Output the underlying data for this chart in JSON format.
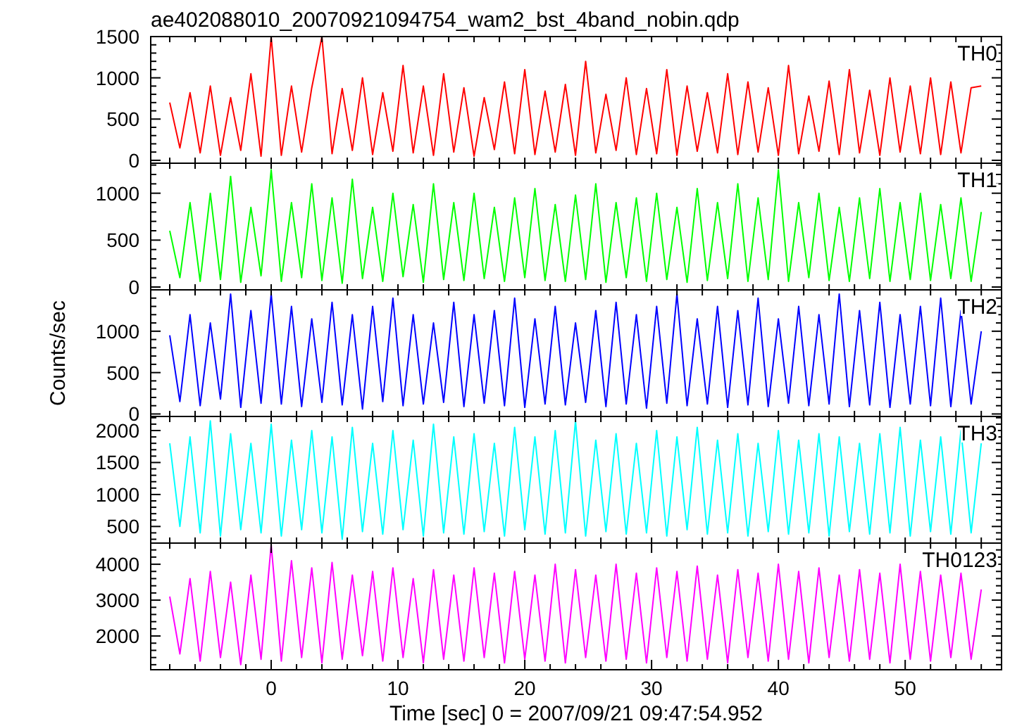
{
  "chart_data": [
    {
      "type": "line",
      "title": "ae402088010_20070921094754_wam2_bst_4band_nobin.qdp",
      "tick_labels": "y",
      "xlim": [
        -9.5,
        57.6
      ],
      "ylim": [
        -35,
        1500
      ],
      "xticks": [
        {
          "value": -8,
          "label": null
        },
        {
          "value": -6,
          "label": null
        },
        {
          "value": -4,
          "label": null
        },
        {
          "value": -2,
          "label": null
        },
        {
          "value": 0,
          "label": null
        },
        {
          "value": 2,
          "label": null
        },
        {
          "value": 4,
          "label": null
        },
        {
          "value": 6,
          "label": null
        },
        {
          "value": 8,
          "label": null
        },
        {
          "value": 10,
          "label": null
        },
        {
          "value": 12,
          "label": null
        },
        {
          "value": 14,
          "label": null
        },
        {
          "value": 16,
          "label": null
        },
        {
          "value": 18,
          "label": null
        },
        {
          "value": 20,
          "label": null
        },
        {
          "value": 22,
          "label": null
        },
        {
          "value": 24,
          "label": null
        },
        {
          "value": 26,
          "label": null
        },
        {
          "value": 28,
          "label": null
        },
        {
          "value": 30,
          "label": null
        },
        {
          "value": 32,
          "label": null
        },
        {
          "value": 34,
          "label": null
        },
        {
          "value": 36,
          "label": null
        },
        {
          "value": 38,
          "label": null
        },
        {
          "value": 40,
          "label": null
        },
        {
          "value": 42,
          "label": null
        },
        {
          "value": 44,
          "label": null
        },
        {
          "value": 46,
          "label": null
        },
        {
          "value": 48,
          "label": null
        },
        {
          "value": 50,
          "label": null
        },
        {
          "value": 52,
          "label": null
        },
        {
          "value": 54,
          "label": null
        },
        {
          "value": 56,
          "label": null
        }
      ],
      "yticks": [
        0,
        {
          "value": 100,
          "label": null
        },
        {
          "value": 200,
          "label": null
        },
        {
          "value": 300,
          "label": null
        },
        {
          "value": 400,
          "label": null
        },
        500,
        {
          "value": 600,
          "label": null
        },
        {
          "value": 700,
          "label": null
        },
        {
          "value": 800,
          "label": null
        },
        {
          "value": 900,
          "label": null
        },
        1000,
        {
          "value": 1100,
          "label": null
        },
        {
          "value": 1200,
          "label": null
        },
        {
          "value": 1300,
          "label": null
        },
        {
          "value": 1400,
          "label": null
        },
        1500
      ],
      "x": [
        -8,
        -7.2,
        -6.4,
        -5.6,
        -4.8,
        -4,
        -3.2,
        -2.4,
        -1.6,
        -0.8,
        0,
        0.8,
        1.6,
        2.4,
        3.2,
        4,
        4.8,
        5.6,
        6.4,
        7.2,
        8,
        8.8,
        9.6,
        10.4,
        11.2,
        12,
        12.8,
        13.6,
        14.4,
        15.2,
        16,
        16.8,
        17.6,
        18.4,
        19.2,
        20,
        20.8,
        21.6,
        22.4,
        23.2,
        24,
        24.8,
        25.6,
        26.4,
        27.2,
        28,
        28.8,
        29.6,
        30.4,
        31.2,
        32,
        32.8,
        33.6,
        34.4,
        35.2,
        36,
        36.8,
        37.6,
        38.4,
        39.2,
        40,
        40.8,
        41.6,
        42.4,
        43.2,
        44,
        44.8,
        45.6,
        46.4,
        47.2,
        48,
        48.8,
        49.6,
        50.4,
        51.2,
        52,
        52.8,
        53.6,
        54.4,
        55.2,
        56
      ],
      "series": [
        {
          "name": "TH0",
          "color": "#ff0000",
          "values": [
            700,
            150,
            820,
            90,
            900,
            60,
            760,
            120,
            1050,
            50,
            1500,
            60,
            900,
            100,
            880,
            1500,
            80,
            870,
            120,
            1000,
            70,
            820,
            110,
            1150,
            90,
            900,
            60,
            1050,
            100,
            880,
            50,
            760,
            130,
            950,
            80,
            1100,
            70,
            840,
            100,
            920,
            60,
            1200,
            90,
            800,
            120,
            1000,
            70,
            870,
            80,
            1100,
            60,
            900,
            110,
            820,
            90,
            1050,
            70,
            950,
            100,
            880,
            60,
            1150,
            80,
            780,
            110,
            960,
            70,
            1100,
            90,
            850,
            60,
            1000,
            100,
            900,
            80,
            1000,
            70,
            950,
            90,
            880,
            900
          ]
        }
      ]
    },
    {
      "type": "line",
      "tick_labels": "y",
      "xlim": [
        -9.5,
        57.6
      ],
      "ylim": [
        -30,
        1320
      ],
      "xticks": [
        {
          "value": -8,
          "label": null
        },
        {
          "value": -6,
          "label": null
        },
        {
          "value": -4,
          "label": null
        },
        {
          "value": -2,
          "label": null
        },
        {
          "value": 0,
          "label": null
        },
        {
          "value": 2,
          "label": null
        },
        {
          "value": 4,
          "label": null
        },
        {
          "value": 6,
          "label": null
        },
        {
          "value": 8,
          "label": null
        },
        {
          "value": 10,
          "label": null
        },
        {
          "value": 12,
          "label": null
        },
        {
          "value": 14,
          "label": null
        },
        {
          "value": 16,
          "label": null
        },
        {
          "value": 18,
          "label": null
        },
        {
          "value": 20,
          "label": null
        },
        {
          "value": 22,
          "label": null
        },
        {
          "value": 24,
          "label": null
        },
        {
          "value": 26,
          "label": null
        },
        {
          "value": 28,
          "label": null
        },
        {
          "value": 30,
          "label": null
        },
        {
          "value": 32,
          "label": null
        },
        {
          "value": 34,
          "label": null
        },
        {
          "value": 36,
          "label": null
        },
        {
          "value": 38,
          "label": null
        },
        {
          "value": 40,
          "label": null
        },
        {
          "value": 42,
          "label": null
        },
        {
          "value": 44,
          "label": null
        },
        {
          "value": 46,
          "label": null
        },
        {
          "value": 48,
          "label": null
        },
        {
          "value": 50,
          "label": null
        },
        {
          "value": 52,
          "label": null
        },
        {
          "value": 54,
          "label": null
        },
        {
          "value": 56,
          "label": null
        }
      ],
      "yticks": [
        0,
        {
          "value": 100,
          "label": null
        },
        {
          "value": 200,
          "label": null
        },
        {
          "value": 300,
          "label": null
        },
        {
          "value": 400,
          "label": null
        },
        500,
        {
          "value": 600,
          "label": null
        },
        {
          "value": 700,
          "label": null
        },
        {
          "value": 800,
          "label": null
        },
        {
          "value": 900,
          "label": null
        },
        1000,
        {
          "value": 1100,
          "label": null
        },
        {
          "value": 1200,
          "label": null
        },
        {
          "value": 1300,
          "label": null
        }
      ],
      "x": [
        -8,
        -7.2,
        -6.4,
        -5.6,
        -4.8,
        -4,
        -3.2,
        -2.4,
        -1.6,
        -0.8,
        0,
        0.8,
        1.6,
        2.4,
        3.2,
        4,
        4.8,
        5.6,
        6.4,
        7.2,
        8,
        8.8,
        9.6,
        10.4,
        11.2,
        12,
        12.8,
        13.6,
        14.4,
        15.2,
        16,
        16.8,
        17.6,
        18.4,
        19.2,
        20,
        20.8,
        21.6,
        22.4,
        23.2,
        24,
        24.8,
        25.6,
        26.4,
        27.2,
        28,
        28.8,
        29.6,
        30.4,
        31.2,
        32,
        32.8,
        33.6,
        34.4,
        35.2,
        36,
        36.8,
        37.6,
        38.4,
        39.2,
        40,
        40.8,
        41.6,
        42.4,
        43.2,
        44,
        44.8,
        45.6,
        46.4,
        47.2,
        48,
        48.8,
        49.6,
        50.4,
        51.2,
        52,
        52.8,
        53.6,
        54.4,
        55.2,
        56
      ],
      "series": [
        {
          "name": "TH1",
          "color": "#00ff00",
          "values": [
            600,
            100,
            900,
            60,
            1000,
            80,
            1180,
            50,
            850,
            120,
            1250,
            60,
            900,
            100,
            1100,
            70,
            950,
            40,
            1150,
            90,
            850,
            60,
            1000,
            110,
            880,
            50,
            1100,
            80,
            900,
            70,
            1000,
            90,
            850,
            60,
            950,
            100,
            1050,
            70,
            880,
            60,
            980,
            80,
            1100,
            50,
            900,
            100,
            950,
            60,
            1000,
            80,
            850,
            50,
            1050,
            70,
            900,
            90,
            1100,
            60,
            950,
            80,
            1250,
            60,
            900,
            100,
            1000,
            70,
            850,
            60,
            950,
            90,
            1050,
            60,
            900,
            80,
            1000,
            70,
            880,
            90,
            950,
            60,
            800
          ]
        }
      ]
    },
    {
      "type": "line",
      "ylabel": "Counts/sec",
      "tick_labels": "y",
      "xlim": [
        -9.5,
        57.6
      ],
      "ylim": [
        -30,
        1500
      ],
      "xticks": [
        {
          "value": -8,
          "label": null
        },
        {
          "value": -6,
          "label": null
        },
        {
          "value": -4,
          "label": null
        },
        {
          "value": -2,
          "label": null
        },
        {
          "value": 0,
          "label": null
        },
        {
          "value": 2,
          "label": null
        },
        {
          "value": 4,
          "label": null
        },
        {
          "value": 6,
          "label": null
        },
        {
          "value": 8,
          "label": null
        },
        {
          "value": 10,
          "label": null
        },
        {
          "value": 12,
          "label": null
        },
        {
          "value": 14,
          "label": null
        },
        {
          "value": 16,
          "label": null
        },
        {
          "value": 18,
          "label": null
        },
        {
          "value": 20,
          "label": null
        },
        {
          "value": 22,
          "label": null
        },
        {
          "value": 24,
          "label": null
        },
        {
          "value": 26,
          "label": null
        },
        {
          "value": 28,
          "label": null
        },
        {
          "value": 30,
          "label": null
        },
        {
          "value": 32,
          "label": null
        },
        {
          "value": 34,
          "label": null
        },
        {
          "value": 36,
          "label": null
        },
        {
          "value": 38,
          "label": null
        },
        {
          "value": 40,
          "label": null
        },
        {
          "value": 42,
          "label": null
        },
        {
          "value": 44,
          "label": null
        },
        {
          "value": 46,
          "label": null
        },
        {
          "value": 48,
          "label": null
        },
        {
          "value": 50,
          "label": null
        },
        {
          "value": 52,
          "label": null
        },
        {
          "value": 54,
          "label": null
        },
        {
          "value": 56,
          "label": null
        }
      ],
      "yticks": [
        0,
        {
          "value": 100,
          "label": null
        },
        {
          "value": 200,
          "label": null
        },
        {
          "value": 300,
          "label": null
        },
        {
          "value": 400,
          "label": null
        },
        500,
        {
          "value": 600,
          "label": null
        },
        {
          "value": 700,
          "label": null
        },
        {
          "value": 800,
          "label": null
        },
        {
          "value": 900,
          "label": null
        },
        1000,
        {
          "value": 1100,
          "label": null
        },
        {
          "value": 1200,
          "label": null
        },
        {
          "value": 1300,
          "label": null
        },
        {
          "value": 1400,
          "label": null
        }
      ],
      "x": [
        -8,
        -7.2,
        -6.4,
        -5.6,
        -4.8,
        -4,
        -3.2,
        -2.4,
        -1.6,
        -0.8,
        0,
        0.8,
        1.6,
        2.4,
        3.2,
        4,
        4.8,
        5.6,
        6.4,
        7.2,
        8,
        8.8,
        9.6,
        10.4,
        11.2,
        12,
        12.8,
        13.6,
        14.4,
        15.2,
        16,
        16.8,
        17.6,
        18.4,
        19.2,
        20,
        20.8,
        21.6,
        22.4,
        23.2,
        24,
        24.8,
        25.6,
        26.4,
        27.2,
        28,
        28.8,
        29.6,
        30.4,
        31.2,
        32,
        32.8,
        33.6,
        34.4,
        35.2,
        36,
        36.8,
        37.6,
        38.4,
        39.2,
        40,
        40.8,
        41.6,
        42.4,
        43.2,
        44,
        44.8,
        45.6,
        46.4,
        47.2,
        48,
        48.8,
        49.6,
        50.4,
        51.2,
        52,
        52.8,
        53.6,
        54.4,
        55.2,
        56
      ],
      "series": [
        {
          "name": "TH2",
          "color": "#0000ff",
          "values": [
            950,
            150,
            1200,
            100,
            1100,
            180,
            1450,
            80,
            1250,
            130,
            1450,
            120,
            1300,
            90,
            1150,
            140,
            1350,
            110,
            1200,
            60,
            1300,
            150,
            1400,
            100,
            1200,
            120,
            1100,
            140,
            1350,
            90,
            1200,
            130,
            1250,
            100,
            1400,
            80,
            1150,
            120,
            1300,
            110,
            1100,
            140,
            1250,
            90,
            1350,
            120,
            1200,
            70,
            1300,
            130,
            1450,
            100,
            1150,
            120,
            1300,
            80,
            1250,
            110,
            1400,
            90,
            1150,
            130,
            1300,
            100,
            1200,
            120,
            1450,
            90,
            1250,
            110,
            1350,
            80,
            1200,
            120,
            1300,
            100,
            1400,
            90,
            1250,
            120,
            1000
          ]
        }
      ]
    },
    {
      "type": "line",
      "tick_labels": "y",
      "xlim": [
        -9.5,
        57.6
      ],
      "ylim": [
        240,
        2220
      ],
      "xticks": [
        {
          "value": -8,
          "label": null
        },
        {
          "value": -6,
          "label": null
        },
        {
          "value": -4,
          "label": null
        },
        {
          "value": -2,
          "label": null
        },
        {
          "value": 0,
          "label": null
        },
        {
          "value": 2,
          "label": null
        },
        {
          "value": 4,
          "label": null
        },
        {
          "value": 6,
          "label": null
        },
        {
          "value": 8,
          "label": null
        },
        {
          "value": 10,
          "label": null
        },
        {
          "value": 12,
          "label": null
        },
        {
          "value": 14,
          "label": null
        },
        {
          "value": 16,
          "label": null
        },
        {
          "value": 18,
          "label": null
        },
        {
          "value": 20,
          "label": null
        },
        {
          "value": 22,
          "label": null
        },
        {
          "value": 24,
          "label": null
        },
        {
          "value": 26,
          "label": null
        },
        {
          "value": 28,
          "label": null
        },
        {
          "value": 30,
          "label": null
        },
        {
          "value": 32,
          "label": null
        },
        {
          "value": 34,
          "label": null
        },
        {
          "value": 36,
          "label": null
        },
        {
          "value": 38,
          "label": null
        },
        {
          "value": 40,
          "label": null
        },
        {
          "value": 42,
          "label": null
        },
        {
          "value": 44,
          "label": null
        },
        {
          "value": 46,
          "label": null
        },
        {
          "value": 48,
          "label": null
        },
        {
          "value": 50,
          "label": null
        },
        {
          "value": 52,
          "label": null
        },
        {
          "value": 54,
          "label": null
        },
        {
          "value": 56,
          "label": null
        }
      ],
      "yticks": [
        {
          "value": 300,
          "label": null
        },
        {
          "value": 400,
          "label": null
        },
        500,
        {
          "value": 600,
          "label": null
        },
        {
          "value": 700,
          "label": null
        },
        {
          "value": 800,
          "label": null
        },
        {
          "value": 900,
          "label": null
        },
        1000,
        {
          "value": 1100,
          "label": null
        },
        {
          "value": 1200,
          "label": null
        },
        {
          "value": 1300,
          "label": null
        },
        {
          "value": 1400,
          "label": null
        },
        1500,
        {
          "value": 1600,
          "label": null
        },
        {
          "value": 1700,
          "label": null
        },
        {
          "value": 1800,
          "label": null
        },
        {
          "value": 1900,
          "label": null
        },
        2000,
        {
          "value": 2100,
          "label": null
        },
        {
          "value": 2200,
          "label": null
        }
      ],
      "x": [
        -8,
        -7.2,
        -6.4,
        -5.6,
        -4.8,
        -4,
        -3.2,
        -2.4,
        -1.6,
        -0.8,
        0,
        0.8,
        1.6,
        2.4,
        3.2,
        4,
        4.8,
        5.6,
        6.4,
        7.2,
        8,
        8.8,
        9.6,
        10.4,
        11.2,
        12,
        12.8,
        13.6,
        14.4,
        15.2,
        16,
        16.8,
        17.6,
        18.4,
        19.2,
        20,
        20.8,
        21.6,
        22.4,
        23.2,
        24,
        24.8,
        25.6,
        26.4,
        27.2,
        28,
        28.8,
        29.6,
        30.4,
        31.2,
        32,
        32.8,
        33.6,
        34.4,
        35.2,
        36,
        36.8,
        37.6,
        38.4,
        39.2,
        40,
        40.8,
        41.6,
        42.4,
        43.2,
        44,
        44.8,
        45.6,
        46.4,
        47.2,
        48,
        48.8,
        49.6,
        50.4,
        51.2,
        52,
        52.8,
        53.6,
        54.4,
        55.2,
        56
      ],
      "series": [
        {
          "name": "TH3",
          "color": "#00ffff",
          "values": [
            1800,
            500,
            1900,
            400,
            2150,
            350,
            1950,
            450,
            1800,
            400,
            2100,
            350,
            1850,
            450,
            2000,
            400,
            1900,
            300,
            2050,
            420,
            1800,
            380,
            2000,
            450,
            1850,
            350,
            2100,
            400,
            1900,
            380,
            1950,
            420,
            1800,
            350,
            2050,
            450,
            1900,
            380,
            2000,
            400,
            2150,
            350,
            1850,
            420,
            1950,
            380,
            1800,
            400,
            2000,
            350,
            1900,
            450,
            2050,
            380,
            1850,
            400,
            1950,
            350,
            1800,
            420,
            2000,
            380,
            1850,
            400,
            1950,
            350,
            1900,
            420,
            1800,
            380,
            1950,
            400,
            2050,
            350,
            1850,
            420,
            1900,
            380,
            2000,
            400,
            1800
          ]
        }
      ]
    },
    {
      "type": "line",
      "xlabel": "Time [sec] 0 = 2007/09/21 09:47:54.952",
      "xlim": [
        -9.5,
        57.6
      ],
      "ylim": [
        1060,
        4590
      ],
      "xticks": [
        {
          "value": -8,
          "label": null
        },
        {
          "value": -6,
          "label": null
        },
        {
          "value": -4,
          "label": null
        },
        {
          "value": -2,
          "label": null
        },
        0,
        {
          "value": 2,
          "label": null
        },
        {
          "value": 4,
          "label": null
        },
        {
          "value": 6,
          "label": null
        },
        {
          "value": 8,
          "label": null
        },
        10,
        {
          "value": 12,
          "label": null
        },
        {
          "value": 14,
          "label": null
        },
        {
          "value": 16,
          "label": null
        },
        {
          "value": 18,
          "label": null
        },
        20,
        {
          "value": 22,
          "label": null
        },
        {
          "value": 24,
          "label": null
        },
        {
          "value": 26,
          "label": null
        },
        {
          "value": 28,
          "label": null
        },
        30,
        {
          "value": 32,
          "label": null
        },
        {
          "value": 34,
          "label": null
        },
        {
          "value": 36,
          "label": null
        },
        {
          "value": 38,
          "label": null
        },
        40,
        {
          "value": 42,
          "label": null
        },
        {
          "value": 44,
          "label": null
        },
        {
          "value": 46,
          "label": null
        },
        {
          "value": 48,
          "label": null
        },
        50,
        {
          "value": 52,
          "label": null
        },
        {
          "value": 54,
          "label": null
        },
        {
          "value": 56,
          "label": null
        }
      ],
      "yticks": [
        {
          "value": 1200,
          "label": null
        },
        {
          "value": 1400,
          "label": null
        },
        {
          "value": 1600,
          "label": null
        },
        {
          "value": 1800,
          "label": null
        },
        2000,
        {
          "value": 2200,
          "label": null
        },
        {
          "value": 2400,
          "label": null
        },
        {
          "value": 2600,
          "label": null
        },
        {
          "value": 2800,
          "label": null
        },
        3000,
        {
          "value": 3200,
          "label": null
        },
        {
          "value": 3400,
          "label": null
        },
        {
          "value": 3600,
          "label": null
        },
        {
          "value": 3800,
          "label": null
        },
        4000,
        {
          "value": 4200,
          "label": null
        },
        {
          "value": 4400,
          "label": null
        }
      ],
      "x": [
        -8,
        -7.2,
        -6.4,
        -5.6,
        -4.8,
        -4,
        -3.2,
        -2.4,
        -1.6,
        -0.8,
        0,
        0.8,
        1.6,
        2.4,
        3.2,
        4,
        4.8,
        5.6,
        6.4,
        7.2,
        8,
        8.8,
        9.6,
        10.4,
        11.2,
        12,
        12.8,
        13.6,
        14.4,
        15.2,
        16,
        16.8,
        17.6,
        18.4,
        19.2,
        20,
        20.8,
        21.6,
        22.4,
        23.2,
        24,
        24.8,
        25.6,
        26.4,
        27.2,
        28,
        28.8,
        29.6,
        30.4,
        31.2,
        32,
        32.8,
        33.6,
        34.4,
        35.2,
        36,
        36.8,
        37.6,
        38.4,
        39.2,
        40,
        40.8,
        41.6,
        42.4,
        43.2,
        44,
        44.8,
        45.6,
        46.4,
        47.2,
        48,
        48.8,
        49.6,
        50.4,
        51.2,
        52,
        52.8,
        53.6,
        54.4,
        55.2,
        56
      ],
      "series": [
        {
          "name": "TH0123",
          "color": "#ff00ff",
          "values": [
            3100,
            1500,
            3600,
            1300,
            3800,
            1400,
            3500,
            1200,
            3700,
            1350,
            4550,
            1300,
            4100,
            1400,
            3900,
            1250,
            4050,
            1350,
            3700,
            1450,
            3800,
            1300,
            3900,
            1400,
            3600,
            1250,
            3850,
            1350,
            3700,
            1300,
            3900,
            1400,
            3750,
            1250,
            3800,
            1350,
            3700,
            1300,
            4000,
            1250,
            3850,
            1400,
            3700,
            1300,
            4000,
            1350,
            3750,
            1250,
            3900,
            1400,
            3800,
            1300,
            3950,
            1350,
            3700,
            1250,
            3850,
            1400,
            3750,
            1300,
            4000,
            1350,
            3800,
            1250,
            3900,
            1400,
            3700,
            1300,
            3850,
            1350,
            3750,
            1250,
            4000,
            1350,
            3800,
            1300,
            3700,
            1400,
            3750,
            1350,
            3300
          ]
        }
      ]
    }
  ]
}
